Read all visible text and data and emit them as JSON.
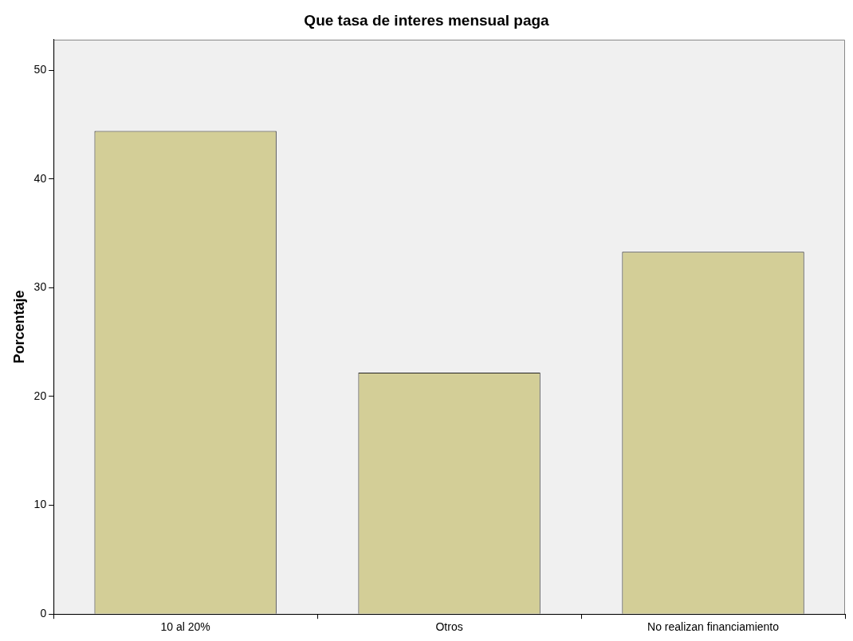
{
  "chart_data": {
    "type": "bar",
    "title": "Que tasa de interes mensual paga",
    "ylabel": "Porcentaje",
    "categories": [
      "10 al 20%",
      "Otros",
      "No realizan financiamiento"
    ],
    "values": [
      44.4,
      22.2,
      33.3
    ],
    "color": "#d3ce97",
    "ylim": [
      0,
      52.8
    ],
    "yticks": [
      0,
      10,
      20,
      30,
      40,
      50
    ],
    "grid": false,
    "legend": false
  }
}
